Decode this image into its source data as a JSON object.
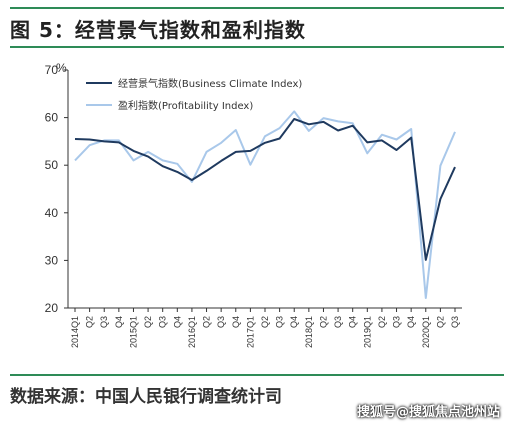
{
  "header": {
    "title": "图 5：经营景气指数和盈利指数"
  },
  "footer": {
    "source": "数据来源：中国人民银行调查统计司",
    "watermark": "搜狐号@搜狐焦点池州站"
  },
  "chart_data": {
    "type": "line",
    "title": "",
    "ylabel": "%",
    "xlabel": "",
    "ylim": [
      20,
      70
    ],
    "yticks": [
      20,
      30,
      40,
      50,
      60,
      70
    ],
    "grid": false,
    "legend_position": "top-left",
    "x": [
      "2014Q1",
      "Q2",
      "Q3",
      "Q4",
      "2015Q1",
      "Q2",
      "Q3",
      "Q4",
      "2016Q1",
      "Q2",
      "Q3",
      "Q4",
      "2017Q1",
      "Q2",
      "Q3",
      "Q4",
      "2018Q1",
      "Q2",
      "Q3",
      "Q4",
      "2019Q1",
      "Q2",
      "Q3",
      "Q4",
      "2020Q1",
      "Q2",
      "Q3"
    ],
    "series": [
      {
        "name": "经营景气指数(Business Climate Index)",
        "color": "#1f3a5f",
        "values": [
          55.5,
          55.4,
          55.0,
          54.8,
          53.0,
          51.8,
          49.8,
          48.6,
          46.9,
          48.8,
          50.9,
          52.8,
          53.0,
          54.7,
          55.6,
          59.7,
          58.6,
          59.1,
          57.3,
          58.3,
          54.8,
          55.2,
          53.2,
          55.8,
          30.1,
          42.9,
          49.6
        ]
      },
      {
        "name": "盈利指数(Profitability Index)",
        "color": "#a9c8ea",
        "values": [
          51.0,
          54.2,
          55.2,
          55.2,
          51.0,
          52.8,
          51.0,
          50.3,
          46.5,
          52.8,
          54.7,
          57.4,
          50.1,
          56.1,
          57.8,
          61.3,
          57.2,
          59.9,
          59.2,
          58.8,
          52.5,
          56.4,
          55.4,
          57.6,
          22.1,
          49.9,
          57.0
        ]
      }
    ]
  }
}
